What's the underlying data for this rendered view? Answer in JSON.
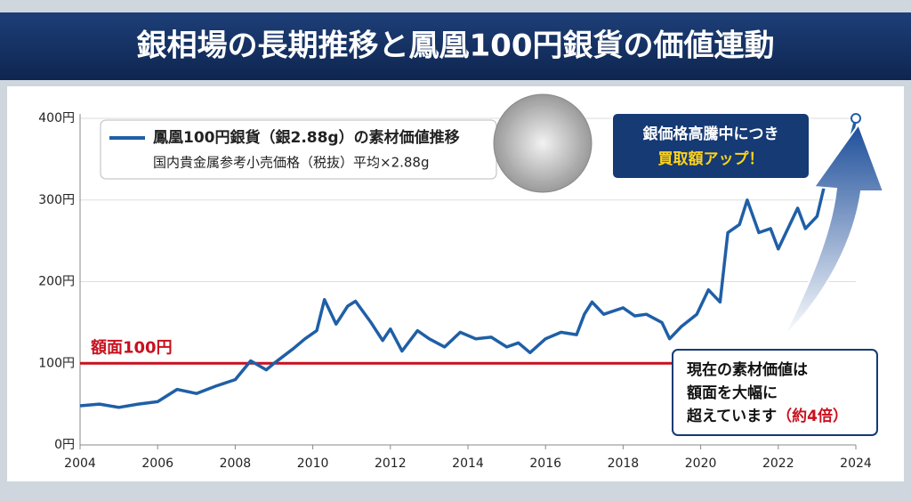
{
  "chart_data": {
    "type": "line",
    "title": "銀相場の長期推移と鳳凰100円銀貨の価値連動",
    "x": [
      2004.0,
      2004.5,
      2005.0,
      2005.5,
      2006.0,
      2006.5,
      2007.0,
      2007.5,
      2008.0,
      2008.4,
      2008.8,
      2009.0,
      2009.5,
      2009.8,
      2010.1,
      2010.3,
      2010.6,
      2010.9,
      2011.1,
      2011.5,
      2011.8,
      2012.0,
      2012.3,
      2012.7,
      2013.0,
      2013.4,
      2013.8,
      2014.2,
      2014.6,
      2015.0,
      2015.3,
      2015.6,
      2016.0,
      2016.4,
      2016.8,
      2017.0,
      2017.2,
      2017.5,
      2018.0,
      2018.3,
      2018.6,
      2019.0,
      2019.2,
      2019.5,
      2019.9,
      2020.2,
      2020.5,
      2020.7,
      2021.0,
      2021.2,
      2021.5,
      2021.8,
      2022.0,
      2022.2,
      2022.5,
      2022.7,
      2023.0,
      2023.3,
      2023.6,
      2023.9,
      2024.0
    ],
    "series": [
      {
        "name": "鳳凰100円銀貨（銀2.88g）の素材価値推移",
        "color": "#1f5fa6",
        "values": [
          48,
          50,
          46,
          50,
          53,
          68,
          63,
          72,
          80,
          103,
          92,
          100,
          118,
          130,
          140,
          178,
          148,
          170,
          176,
          150,
          128,
          142,
          115,
          140,
          130,
          120,
          138,
          130,
          132,
          120,
          125,
          113,
          130,
          138,
          135,
          160,
          175,
          160,
          168,
          158,
          160,
          150,
          130,
          145,
          160,
          190,
          175,
          260,
          270,
          300,
          260,
          265,
          240,
          260,
          290,
          265,
          280,
          340,
          330,
          380,
          400
        ]
      }
    ],
    "legend_subtitle": "国内貴金属参考小売価格（税抜）平均×2.88g",
    "xlim": [
      2004,
      2024
    ],
    "xticks": [
      2004,
      2006,
      2008,
      2010,
      2012,
      2014,
      2016,
      2018,
      2020,
      2022,
      2024
    ],
    "ylim": [
      0,
      400
    ],
    "yticks": [
      {
        "value": 0,
        "label": "0円"
      },
      {
        "value": 100,
        "label": "100円"
      },
      {
        "value": 200,
        "label": "200円"
      },
      {
        "value": 300,
        "label": "300円"
      },
      {
        "value": 400,
        "label": "400円"
      }
    ],
    "grid": true,
    "reference_line": {
      "value": 100,
      "label": "額面100円",
      "color": "#c8101e"
    },
    "annotations": [
      {
        "lines": [
          "銀価格高騰中につき"
        ],
        "highlight": "買取額アップ！"
      },
      {
        "lines": [
          "現在の素材価値は",
          "額面を大幅に",
          "超えています"
        ],
        "highlight": "（約4倍）"
      }
    ]
  }
}
